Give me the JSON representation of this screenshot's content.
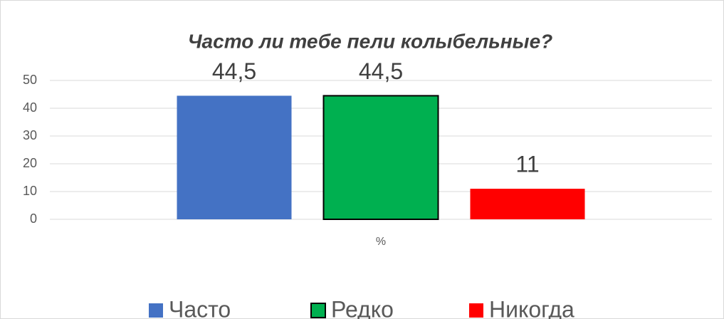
{
  "chart_data": {
    "type": "bar",
    "title": "Часто ли тебе пели колыбельные?",
    "categories": [
      "%"
    ],
    "series": [
      {
        "name": "Часто",
        "color": "#4472c4",
        "values": [
          44.5
        ],
        "value_labels": [
          "44,5"
        ]
      },
      {
        "name": "Редко",
        "color": "#00b050",
        "edgecolor": "#000000",
        "values": [
          44.5
        ],
        "value_labels": [
          "44,5"
        ]
      },
      {
        "name": "Никогда",
        "color": "#ff0000",
        "values": [
          11
        ]
      }
    ],
    "ylim": [
      0,
      50
    ],
    "yticks": [
      0,
      10,
      20,
      30,
      40,
      50
    ],
    "grid": true,
    "legend": "bottom"
  }
}
